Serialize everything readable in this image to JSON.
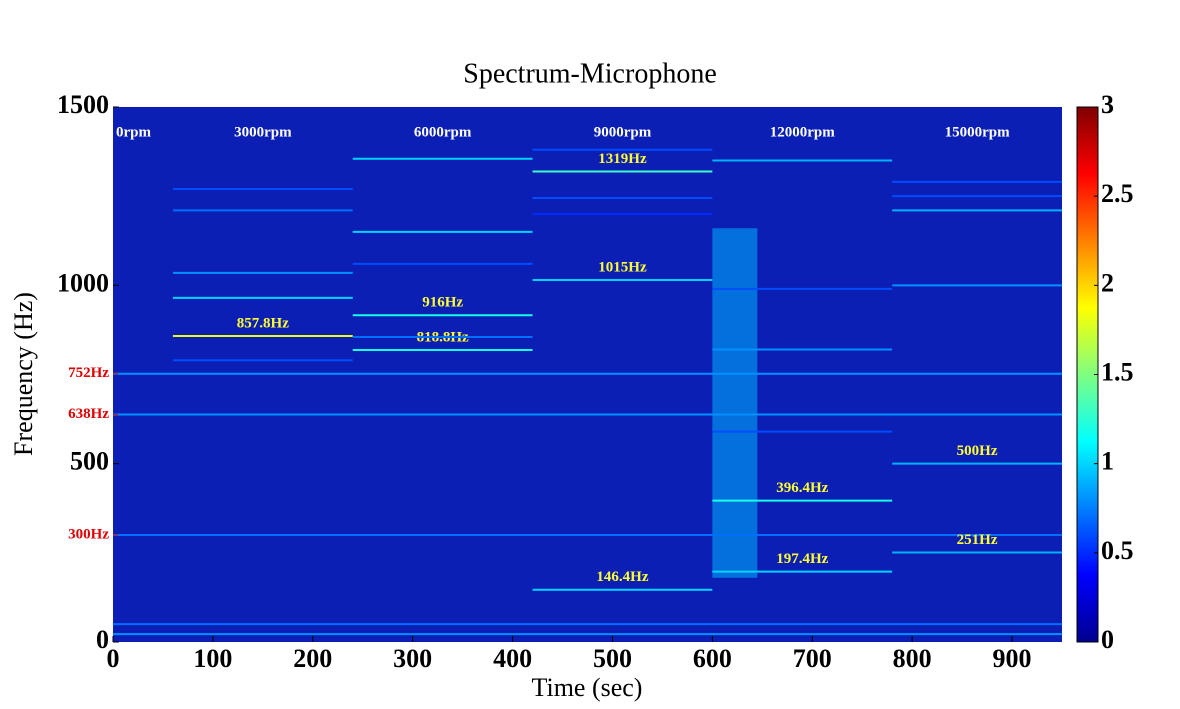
{
  "chart_data": {
    "type": "spectrogram",
    "title": "Spectrum-Microphone",
    "xlabel": "Time (sec)",
    "ylabel": "Frequency (Hz)",
    "xlim": [
      0,
      950
    ],
    "ylim": [
      0,
      1500
    ],
    "xticks": [
      0,
      100,
      200,
      300,
      400,
      500,
      600,
      700,
      800,
      900
    ],
    "yticks": [
      0,
      500,
      1000,
      1500
    ],
    "reference_ticks": [
      {
        "value": 752,
        "label": "752Hz"
      },
      {
        "value": 638,
        "label": "638Hz"
      },
      {
        "value": 300,
        "label": "300Hz"
      }
    ],
    "colormap": "jet",
    "colorbar": {
      "lim": [
        0,
        3
      ],
      "ticks": [
        0,
        0.5,
        1,
        1.5,
        2,
        2.5,
        3
      ]
    },
    "segments": [
      {
        "label": "0rpm",
        "range": [
          0,
          60
        ]
      },
      {
        "label": "3000rpm",
        "range": [
          60,
          240
        ]
      },
      {
        "label": "6000rpm",
        "range": [
          240,
          420
        ]
      },
      {
        "label": "9000rpm",
        "range": [
          420,
          600
        ]
      },
      {
        "label": "12000rpm",
        "range": [
          600,
          780
        ]
      },
      {
        "label": "15000rpm",
        "range": [
          780,
          950
        ]
      }
    ],
    "bursts": [
      {
        "range": [
          600,
          645
        ],
        "frequency_range": [
          180,
          1160
        ],
        "level": 0.9
      }
    ],
    "tones": [
      {
        "frequency": 752,
        "range": [
          0,
          950
        ],
        "level": 0.8
      },
      {
        "frequency": 638,
        "range": [
          0,
          950
        ],
        "level": 0.8
      },
      {
        "frequency": 300,
        "range": [
          0,
          950
        ],
        "level": 0.7
      },
      {
        "frequency": 50,
        "range": [
          0,
          950
        ],
        "level": 0.7
      },
      {
        "frequency": 22,
        "range": [
          0,
          950
        ],
        "level": 0.8
      },
      {
        "frequency": 857.8,
        "range": [
          60,
          240
        ],
        "level": 1.8,
        "label": "857.8Hz"
      },
      {
        "frequency": 965,
        "range": [
          60,
          240
        ],
        "level": 1.0
      },
      {
        "frequency": 1035,
        "range": [
          60,
          240
        ],
        "level": 0.8
      },
      {
        "frequency": 1210,
        "range": [
          60,
          240
        ],
        "level": 0.7
      },
      {
        "frequency": 1270,
        "range": [
          60,
          240
        ],
        "level": 0.6
      },
      {
        "frequency": 790,
        "range": [
          60,
          240
        ],
        "level": 0.6
      },
      {
        "frequency": 916,
        "range": [
          240,
          420
        ],
        "level": 1.2,
        "label": "916Hz"
      },
      {
        "frequency": 818.8,
        "range": [
          240,
          420
        ],
        "level": 1.2,
        "label": "818.8Hz"
      },
      {
        "frequency": 855,
        "range": [
          240,
          420
        ],
        "level": 0.7
      },
      {
        "frequency": 1150,
        "range": [
          240,
          420
        ],
        "level": 1.0
      },
      {
        "frequency": 1355,
        "range": [
          240,
          420
        ],
        "level": 1.0
      },
      {
        "frequency": 1060,
        "range": [
          240,
          420
        ],
        "level": 0.6
      },
      {
        "frequency": 1319,
        "range": [
          420,
          600
        ],
        "level": 1.3,
        "label": "1319Hz"
      },
      {
        "frequency": 1015,
        "range": [
          420,
          600
        ],
        "level": 1.0,
        "label": "1015Hz"
      },
      {
        "frequency": 146.4,
        "range": [
          420,
          600
        ],
        "level": 1.0,
        "label": "146.4Hz"
      },
      {
        "frequency": 1380,
        "range": [
          420,
          600
        ],
        "level": 0.6
      },
      {
        "frequency": 1245,
        "range": [
          420,
          600
        ],
        "level": 0.6
      },
      {
        "frequency": 1200,
        "range": [
          420,
          600
        ],
        "level": 0.5
      },
      {
        "frequency": 396.4,
        "range": [
          600,
          780
        ],
        "level": 1.2,
        "label": "396.4Hz"
      },
      {
        "frequency": 197.4,
        "range": [
          600,
          780
        ],
        "level": 1.0,
        "label": "197.4Hz"
      },
      {
        "frequency": 1350,
        "range": [
          600,
          780
        ],
        "level": 0.9
      },
      {
        "frequency": 990,
        "range": [
          600,
          780
        ],
        "level": 0.6
      },
      {
        "frequency": 820,
        "range": [
          600,
          780
        ],
        "level": 0.8
      },
      {
        "frequency": 590,
        "range": [
          600,
          780
        ],
        "level": 0.6
      },
      {
        "frequency": 500,
        "range": [
          780,
          950
        ],
        "level": 0.9,
        "label": "500Hz"
      },
      {
        "frequency": 251,
        "range": [
          780,
          950
        ],
        "level": 0.9,
        "label": "251Hz"
      },
      {
        "frequency": 1210,
        "range": [
          780,
          950
        ],
        "level": 0.9
      },
      {
        "frequency": 1000,
        "range": [
          780,
          950
        ],
        "level": 0.8
      },
      {
        "frequency": 1290,
        "range": [
          780,
          950
        ],
        "level": 0.6
      },
      {
        "frequency": 1250,
        "range": [
          780,
          950
        ],
        "level": 0.6
      }
    ]
  }
}
